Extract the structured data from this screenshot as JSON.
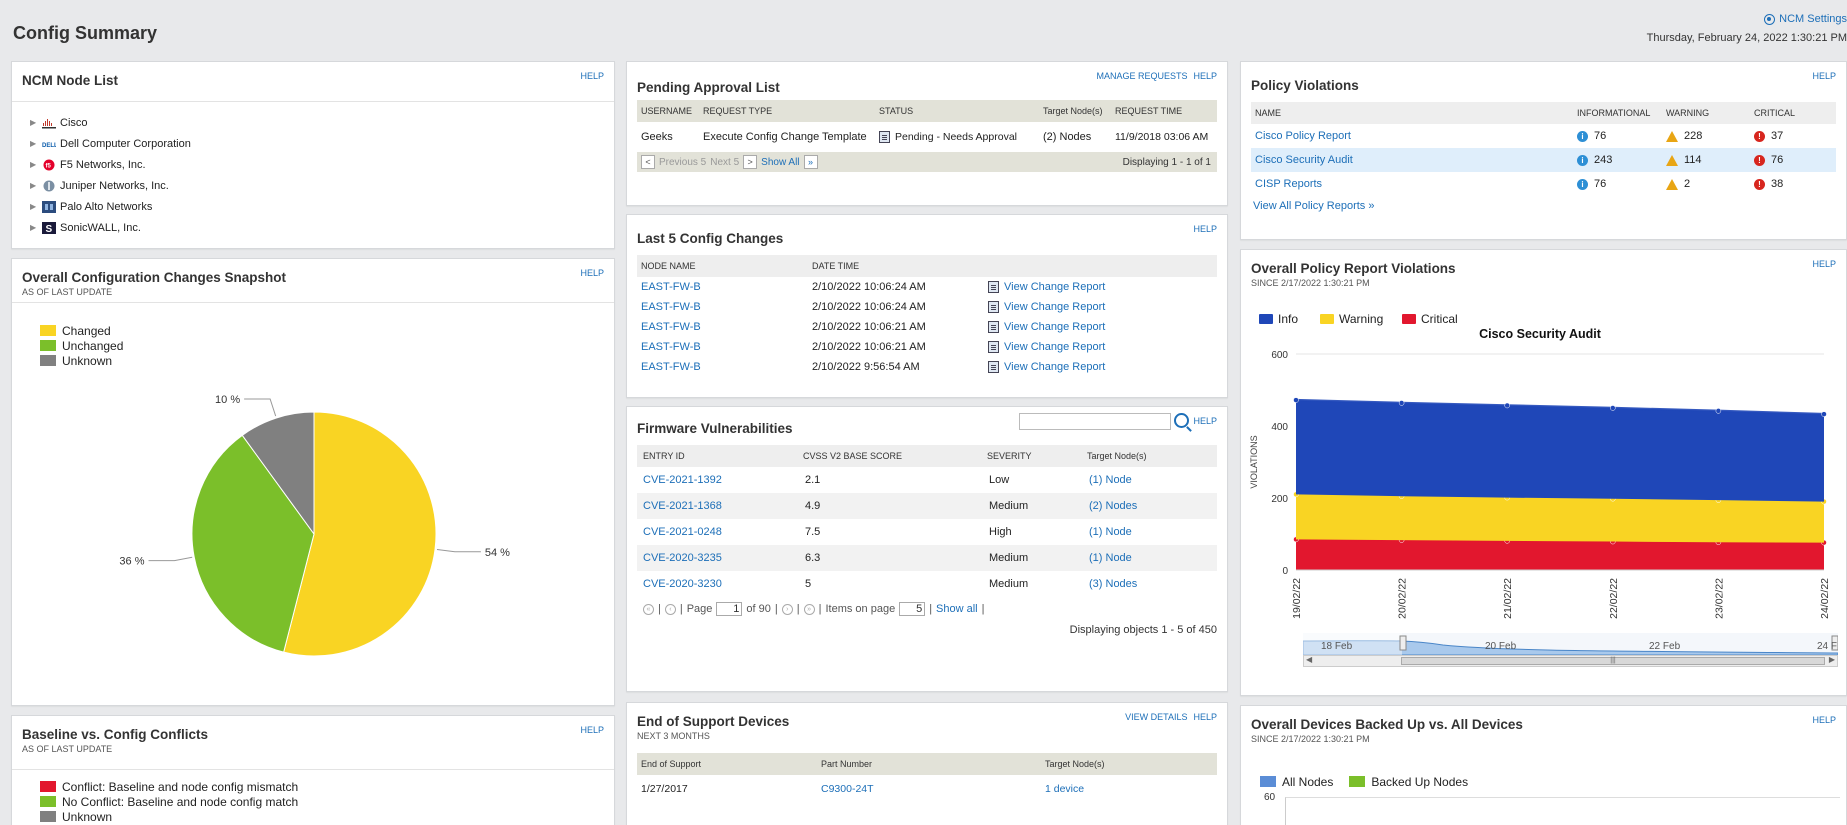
{
  "page": {
    "title": "Config Summary",
    "settings_label": "NCM Settings",
    "date": "Thursday, February 24, 2022 1:30:21 PM"
  },
  "node_list": {
    "title": "NCM Node List",
    "help": "HELP",
    "vendors": [
      {
        "name": "Cisco",
        "icon": "cisco-logo-icon"
      },
      {
        "name": "Dell Computer Corporation",
        "icon": "dell-logo-icon"
      },
      {
        "name": "F5 Networks, Inc.",
        "icon": "f5-logo-icon"
      },
      {
        "name": "Juniper Networks, Inc.",
        "icon": "juniper-logo-icon"
      },
      {
        "name": "Palo Alto Networks",
        "icon": "paloalto-logo-icon"
      },
      {
        "name": "SonicWALL, Inc.",
        "icon": "sonicwall-logo-icon"
      }
    ]
  },
  "snapshot": {
    "title": "Overall Configuration Changes Snapshot",
    "subtitle": "AS OF LAST UPDATE",
    "help": "HELP",
    "legend": [
      {
        "label": "Changed",
        "color": "#f9d423"
      },
      {
        "label": "Unchanged",
        "color": "#7bbf2a"
      },
      {
        "label": "Unknown",
        "color": "#808080"
      }
    ]
  },
  "pending": {
    "title": "Pending Approval List",
    "manage": "MANAGE REQUESTS",
    "help": "HELP",
    "columns": [
      "USERNAME",
      "REQUEST TYPE",
      "STATUS",
      "Target Node(s)",
      "REQUEST TIME"
    ],
    "rows": [
      {
        "user": "Geeks",
        "type": "Execute Config Change Template",
        "status": "Pending - Needs Approval",
        "targets": "(2) Nodes",
        "time": "11/9/2018 03:06 AM"
      }
    ],
    "pager": {
      "previous": "Previous 5",
      "next": "Next 5",
      "show_all": "Show All",
      "displaying": "Displaying 1 - 1 of 1"
    }
  },
  "last_changes": {
    "title": "Last 5 Config Changes",
    "help": "HELP",
    "columns": [
      "NODE NAME",
      "DATE TIME",
      ""
    ],
    "rows": [
      {
        "node": "EAST-FW-B",
        "time": "2/10/2022 10:06:24 AM",
        "action": "View Change Report"
      },
      {
        "node": "EAST-FW-B",
        "time": "2/10/2022 10:06:24 AM",
        "action": "View Change Report"
      },
      {
        "node": "EAST-FW-B",
        "time": "2/10/2022 10:06:21 AM",
        "action": "View Change Report"
      },
      {
        "node": "EAST-FW-B",
        "time": "2/10/2022 10:06:21 AM",
        "action": "View Change Report"
      },
      {
        "node": "EAST-FW-B",
        "time": "2/10/2022 9:56:54 AM",
        "action": "View Change Report"
      }
    ]
  },
  "firmware": {
    "title": "Firmware Vulnerabilities",
    "help": "HELP",
    "search_placeholder": "",
    "columns": [
      "ENTRY ID",
      "CVSS V2 BASE SCORE",
      "SEVERITY",
      "Target Node(s)"
    ],
    "rows": [
      {
        "id": "CVE-2021-1392",
        "score": "2.1",
        "severity": "Low",
        "targets": "(1) Node"
      },
      {
        "id": "CVE-2021-1368",
        "score": "4.9",
        "severity": "Medium",
        "targets": "(2) Nodes"
      },
      {
        "id": "CVE-2021-0248",
        "score": "7.5",
        "severity": "High",
        "targets": "(1) Node"
      },
      {
        "id": "CVE-2020-3235",
        "score": "6.3",
        "severity": "Medium",
        "targets": "(1) Node"
      },
      {
        "id": "CVE-2020-3230",
        "score": "5",
        "severity": "Medium",
        "targets": "(3) Nodes"
      }
    ],
    "pager": {
      "page_label": "Page",
      "page": "1",
      "of": "of 90",
      "items_label": "Items on page",
      "items": "5",
      "show_all": "Show all",
      "displaying": "Displaying objects 1 - 5 of 450"
    }
  },
  "eos": {
    "title": "End of Support Devices",
    "subtitle": "NEXT 3 MONTHS",
    "view": "VIEW DETAILS",
    "help": "HELP",
    "columns": [
      "End of Support",
      "Part Number",
      "Target Node(s)"
    ],
    "rows": [
      {
        "date": "1/27/2017",
        "part": "C9300-24T",
        "targets": "1 device"
      }
    ]
  },
  "baseline": {
    "title": "Baseline vs. Config Conflicts",
    "subtitle": "AS OF LAST UPDATE",
    "help": "HELP",
    "legend": [
      {
        "label": "Conflict: Baseline and node config mismatch",
        "color": "#e2172e"
      },
      {
        "label": "No Conflict: Baseline and node config match",
        "color": "#7bbf2a"
      },
      {
        "label": "Unknown",
        "color": "#808080"
      }
    ]
  },
  "policy": {
    "title": "Policy Violations",
    "help": "HELP",
    "columns": [
      "NAME",
      "INFORMATIONAL",
      "WARNING",
      "CRITICAL"
    ],
    "rows": [
      {
        "name": "Cisco Policy Report",
        "info": "76",
        "warn": "228",
        "crit": "37"
      },
      {
        "name": "Cisco Security Audit",
        "info": "243",
        "warn": "114",
        "crit": "76"
      },
      {
        "name": "CISP Reports",
        "info": "76",
        "warn": "2",
        "crit": "38"
      }
    ],
    "view_all": "View All Policy Reports »"
  },
  "policy_chart": {
    "title": "Overall Policy Report Violations",
    "subtitle": "SINCE 2/17/2022 1:30:21 PM",
    "help": "HELP",
    "navigator": [
      "18 Feb",
      "20 Feb",
      "22 Feb",
      "24 F"
    ]
  },
  "backup": {
    "title": "Overall Devices Backed Up vs. All Devices",
    "subtitle": "SINCE 2/17/2022 1:30:21 PM",
    "help": "HELP",
    "legend": [
      {
        "label": "All Nodes",
        "color": "#5b8dd6"
      },
      {
        "label": "Backed Up Nodes",
        "color": "#7bbf2a"
      }
    ],
    "ytick": "60"
  },
  "chart_data": [
    {
      "type": "pie",
      "title": "",
      "labels": [
        "Changed",
        "Unchanged",
        "Unknown"
      ],
      "values": [
        54,
        36,
        10
      ],
      "value_labels": [
        "54 %",
        "36 %",
        "10 %"
      ],
      "colors": [
        "#f9d423",
        "#7bbf2a",
        "#808080"
      ],
      "legend": "top-left"
    },
    {
      "type": "area",
      "title": "Cisco Security Audit",
      "ylabel": "VIOLATIONS",
      "xlabel": "",
      "x": [
        "19/02/22",
        "20/02/22",
        "21/02/22",
        "22/02/22",
        "23/02/22",
        "24/02/22"
      ],
      "ylim": [
        0,
        600
      ],
      "yticks": [
        "0",
        "200",
        "400",
        "600"
      ],
      "stacked": true,
      "series": [
        {
          "name": "Critical",
          "color": "#e2172e",
          "values": [
            85,
            83,
            81,
            79,
            77,
            76
          ]
        },
        {
          "name": "Warning",
          "color": "#f9d423",
          "values": [
            125,
            122,
            120,
            119,
            117,
            114
          ]
        },
        {
          "name": "Info",
          "color": "#1f47b8",
          "values": [
            262,
            259,
            256,
            252,
            248,
            243
          ]
        }
      ],
      "legend": "top-left"
    }
  ]
}
